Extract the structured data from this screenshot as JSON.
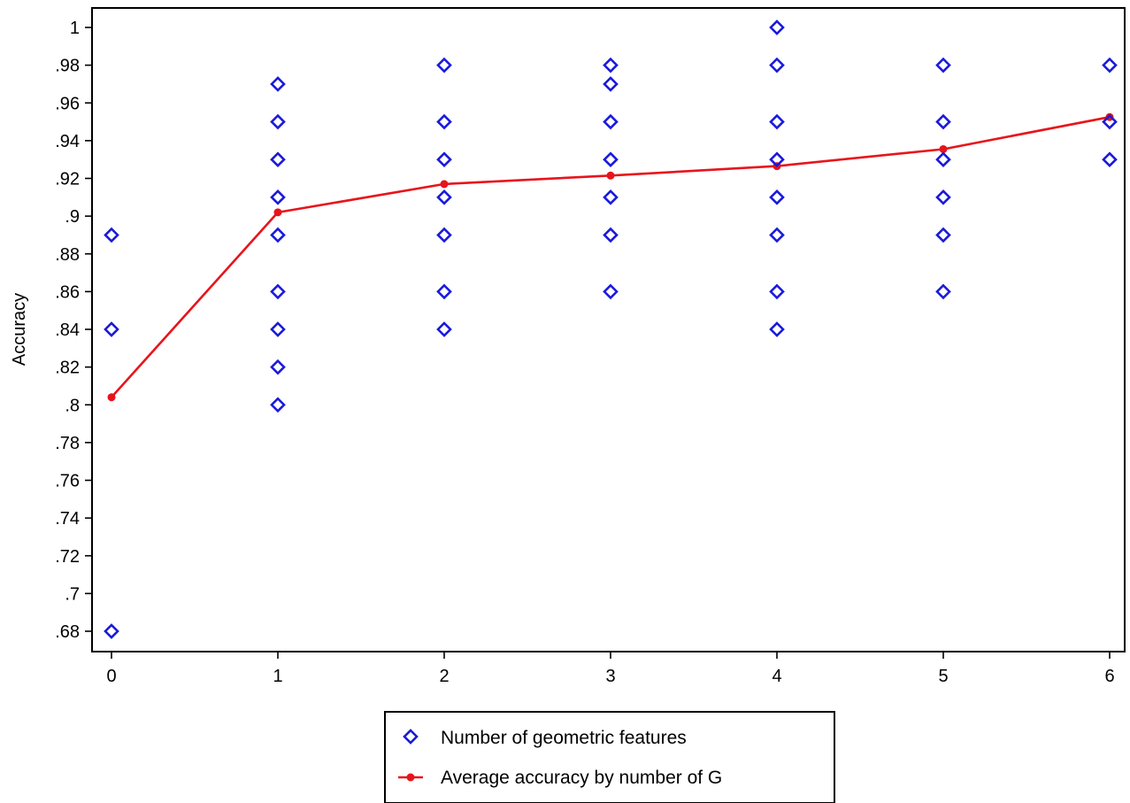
{
  "chart_data": {
    "type": "scatter",
    "ylabel": "Accuracy",
    "xlabel": "",
    "title": "",
    "xlim": [
      0,
      6
    ],
    "ylim": [
      0.68,
      1.0
    ],
    "x_ticks": [
      {
        "value": 0,
        "label": "0"
      },
      {
        "value": 1,
        "label": "1"
      },
      {
        "value": 2,
        "label": "2"
      },
      {
        "value": 3,
        "label": "3"
      },
      {
        "value": 4,
        "label": "4"
      },
      {
        "value": 5,
        "label": "5"
      },
      {
        "value": 6,
        "label": "6"
      }
    ],
    "y_ticks": [
      {
        "value": 0.68,
        "label": ".68"
      },
      {
        "value": 0.7,
        "label": ".7"
      },
      {
        "value": 0.72,
        "label": ".72"
      },
      {
        "value": 0.74,
        "label": ".74"
      },
      {
        "value": 0.76,
        "label": ".76"
      },
      {
        "value": 0.78,
        "label": ".78"
      },
      {
        "value": 0.8,
        "label": ".8"
      },
      {
        "value": 0.82,
        "label": ".82"
      },
      {
        "value": 0.84,
        "label": ".84"
      },
      {
        "value": 0.86,
        "label": ".86"
      },
      {
        "value": 0.88,
        "label": ".88"
      },
      {
        "value": 0.9,
        "label": ".9"
      },
      {
        "value": 0.92,
        "label": ".92"
      },
      {
        "value": 0.94,
        "label": ".94"
      },
      {
        "value": 0.96,
        "label": ".96"
      },
      {
        "value": 0.98,
        "label": ".98"
      },
      {
        "value": 1.0,
        "label": "1"
      }
    ],
    "grid": false,
    "legend_position": "bottom",
    "series": [
      {
        "name": "Number of geometric features",
        "type": "scatter",
        "marker": "hollow-diamond",
        "color": "#1a1adb",
        "points": [
          {
            "x": 0,
            "y": 0.89
          },
          {
            "x": 0,
            "y": 0.84
          },
          {
            "x": 0,
            "y": 0.68
          },
          {
            "x": 1,
            "y": 0.97
          },
          {
            "x": 1,
            "y": 0.95
          },
          {
            "x": 1,
            "y": 0.93
          },
          {
            "x": 1,
            "y": 0.91
          },
          {
            "x": 1,
            "y": 0.89
          },
          {
            "x": 1,
            "y": 0.86
          },
          {
            "x": 1,
            "y": 0.84
          },
          {
            "x": 1,
            "y": 0.82
          },
          {
            "x": 1,
            "y": 0.8
          },
          {
            "x": 2,
            "y": 0.98
          },
          {
            "x": 2,
            "y": 0.95
          },
          {
            "x": 2,
            "y": 0.93
          },
          {
            "x": 2,
            "y": 0.91
          },
          {
            "x": 2,
            "y": 0.89
          },
          {
            "x": 2,
            "y": 0.86
          },
          {
            "x": 2,
            "y": 0.84
          },
          {
            "x": 3,
            "y": 0.98
          },
          {
            "x": 3,
            "y": 0.97
          },
          {
            "x": 3,
            "y": 0.95
          },
          {
            "x": 3,
            "y": 0.93
          },
          {
            "x": 3,
            "y": 0.91
          },
          {
            "x": 3,
            "y": 0.89
          },
          {
            "x": 3,
            "y": 0.86
          },
          {
            "x": 4,
            "y": 1.0
          },
          {
            "x": 4,
            "y": 0.98
          },
          {
            "x": 4,
            "y": 0.95
          },
          {
            "x": 4,
            "y": 0.93
          },
          {
            "x": 4,
            "y": 0.91
          },
          {
            "x": 4,
            "y": 0.89
          },
          {
            "x": 4,
            "y": 0.86
          },
          {
            "x": 4,
            "y": 0.84
          },
          {
            "x": 5,
            "y": 0.98
          },
          {
            "x": 5,
            "y": 0.95
          },
          {
            "x": 5,
            "y": 0.93
          },
          {
            "x": 5,
            "y": 0.91
          },
          {
            "x": 5,
            "y": 0.89
          },
          {
            "x": 5,
            "y": 0.86
          },
          {
            "x": 6,
            "y": 0.98
          },
          {
            "x": 6,
            "y": 0.95
          },
          {
            "x": 6,
            "y": 0.93
          }
        ]
      },
      {
        "name": "Average accuracy by number of G",
        "type": "line",
        "marker": "filled-circle",
        "color": "#e8141b",
        "points": [
          {
            "x": 0,
            "y": 0.804
          },
          {
            "x": 1,
            "y": 0.902
          },
          {
            "x": 2,
            "y": 0.917
          },
          {
            "x": 3,
            "y": 0.9215
          },
          {
            "x": 4,
            "y": 0.9265
          },
          {
            "x": 5,
            "y": 0.9355
          },
          {
            "x": 6,
            "y": 0.9525
          }
        ]
      }
    ]
  }
}
